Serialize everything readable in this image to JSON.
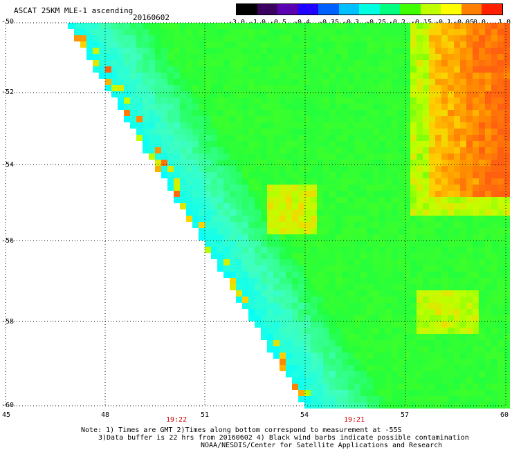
{
  "header": {
    "title": "ASCAT 25KM MLE-1 ascending",
    "date": "20160602"
  },
  "colorbar": {
    "labels": [
      "-3.0",
      "-1.0",
      "-0.5",
      "-0.4",
      "-0.35",
      "-0.3",
      "-0.25",
      "-0.2",
      "-0.15",
      "-0.1",
      "-0.05",
      "0.0",
      "1.0"
    ],
    "colors": [
      "#000000",
      "#3a0060",
      "#5a00b0",
      "#2000ff",
      "#0060ff",
      "#00c0ff",
      "#00ffe0",
      "#00ff80",
      "#40ff00",
      "#c0ff00",
      "#ffff00",
      "#ff8000",
      "#ff2000"
    ]
  },
  "axes": {
    "lat_labels": [
      "-50",
      "-52",
      "-54",
      "-56",
      "-58",
      "-60"
    ],
    "lon_labels": [
      "45",
      "48",
      "51",
      "54",
      "57",
      "60"
    ]
  },
  "times": [
    "19:22",
    "19:21"
  ],
  "notes": {
    "line1": "Note: 1) Times are GMT 2)Times along bottom correspond to measurement at -55S",
    "line2": "3)Data buffer is 22 hrs from 20160602 4) Black wind barbs indicate possible contamination",
    "line3": "NOAA/NESDIS/Center for Satellite Applications and Research"
  }
}
